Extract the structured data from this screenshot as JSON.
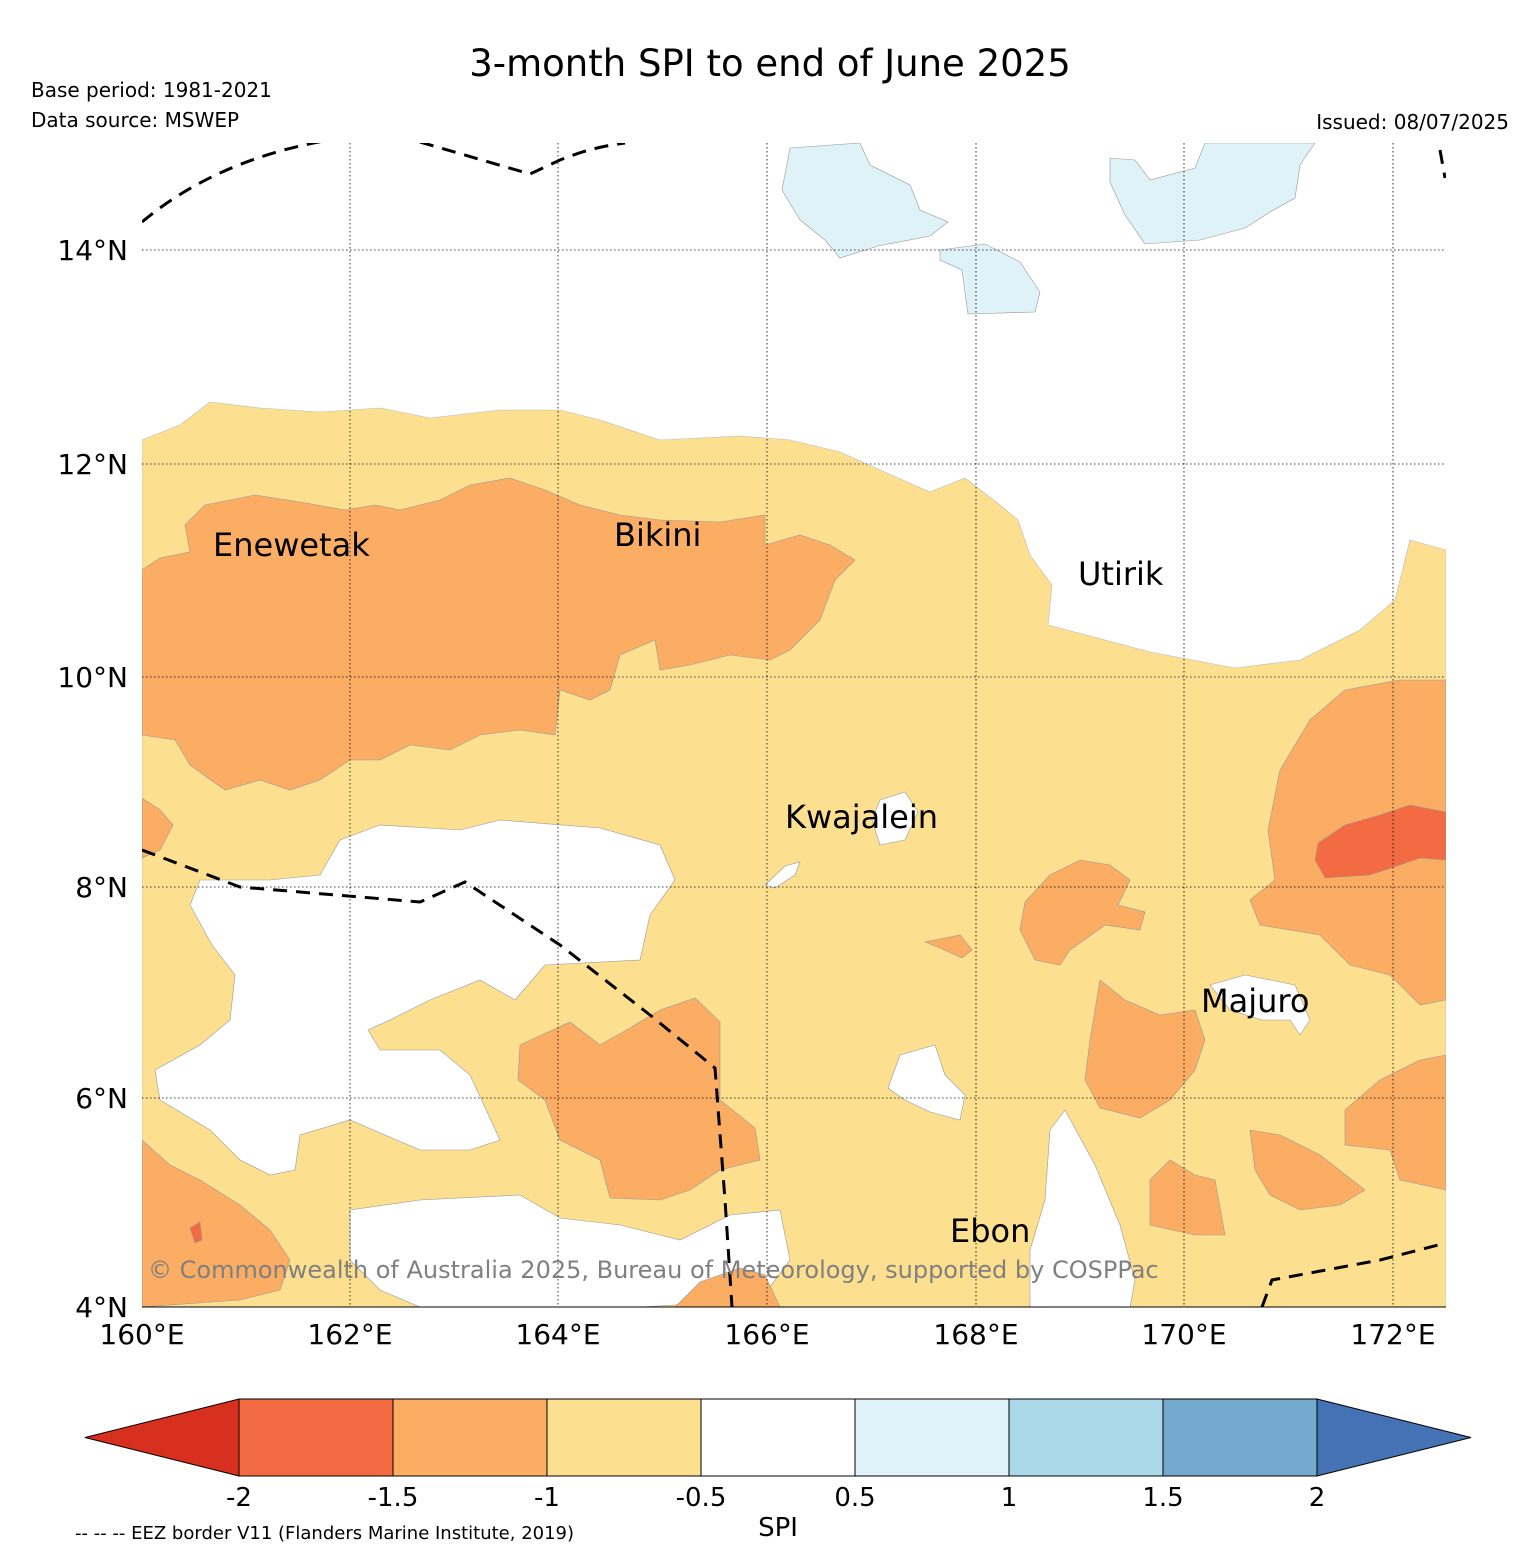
{
  "title": "3-month SPI to end of June 2025",
  "base_period": "Base period: 1981-2021",
  "data_source": "Data source: MSWEP",
  "issued": "Issued: 08/07/2025",
  "copyright": "© Commonwealth of Australia 2025, Bureau of Meteorology, supported by COSPPac",
  "map": {
    "lon_range": [
      160,
      172.5
    ],
    "lat_range": [
      4,
      15
    ],
    "lon_ticks": [
      "160°E",
      "162°E",
      "164°E",
      "166°E",
      "168°E",
      "170°E",
      "172°E"
    ],
    "lat_ticks": [
      "4°N",
      "6°N",
      "8°N",
      "10°N",
      "12°N",
      "14°N"
    ],
    "grid": true,
    "places": [
      {
        "name": "Enewetak"
      },
      {
        "name": "Bikini"
      },
      {
        "name": "Utirik"
      },
      {
        "name": "Kwajalein"
      },
      {
        "name": "Majuro"
      },
      {
        "name": "Ebon"
      }
    ]
  },
  "colorbar": {
    "label": "SPI",
    "ticks": [
      "-2",
      "-1.5",
      "-1",
      "-0.5",
      "0.5",
      "1",
      "1.5",
      "2"
    ],
    "colors": [
      "#d7301f",
      "#f26b43",
      "#fbad64",
      "#fddf90",
      "#ffffff",
      "#dff2f7",
      "#abd9e9",
      "#74aace",
      "#4472b4"
    ]
  },
  "colors": {
    "spi_lt_m2": "#d7301f",
    "spi_m2_m15": "#f26b43",
    "spi_m15_m1": "#fbad64",
    "spi_m1_m05": "#fddf90",
    "spi_near_normal": "#ffffff",
    "spi_05_1": "#dff2f7"
  },
  "eez_note": "-- -- -- EEZ border V11 (Flanders Marine Institute, 2019)"
}
